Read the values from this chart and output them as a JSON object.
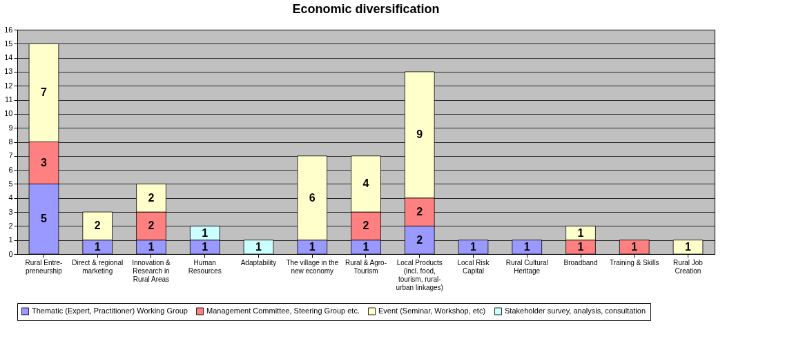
{
  "chart_data": {
    "type": "bar",
    "title": "Economic diversification",
    "stacked": true,
    "data_labels": true,
    "grid": "y",
    "legend": "bottom",
    "categories": [
      "Rural Entre-\npreneurship",
      "Direct & regional\nmarketing",
      "Innovation &\nResearch in\nRural Areas",
      "Human\nResources",
      "Adaptability",
      "The village in the\nnew economy",
      "Rural & Agro-\nTourism",
      "Local Products\n(incl. food,\ntourism, rural-\nurban linkages)",
      "Local Risk\nCapital",
      "Rural Cultural\nHeritage",
      "Broadband",
      "Training & Skills",
      "Rural Job\nCreation"
    ],
    "ylim": [
      0,
      16
    ],
    "yticks": [
      0,
      1,
      2,
      3,
      4,
      5,
      6,
      7,
      8,
      9,
      10,
      11,
      12,
      13,
      14,
      15,
      16
    ],
    "series": [
      {
        "name": "Thematic (Expert, Practitioner) Working Group",
        "color": "#9999ff",
        "values": [
          5,
          1,
          1,
          1,
          null,
          1,
          1,
          2,
          1,
          1,
          null,
          null,
          null
        ]
      },
      {
        "name": "Management Committee, Steering Group etc.",
        "color": "#ff8080",
        "values": [
          3,
          null,
          2,
          null,
          null,
          null,
          2,
          2,
          null,
          null,
          1,
          1,
          null
        ]
      },
      {
        "name": "Event (Seminar, Workshop, etc)",
        "color": "#ffffcc",
        "values": [
          7,
          2,
          2,
          null,
          null,
          6,
          4,
          9,
          null,
          null,
          1,
          null,
          1
        ]
      },
      {
        "name": "Stakeholder survey, analysis, consultation",
        "color": "#ccffff",
        "values": [
          null,
          null,
          null,
          1,
          1,
          null,
          null,
          null,
          null,
          null,
          null,
          null,
          null
        ]
      }
    ]
  }
}
